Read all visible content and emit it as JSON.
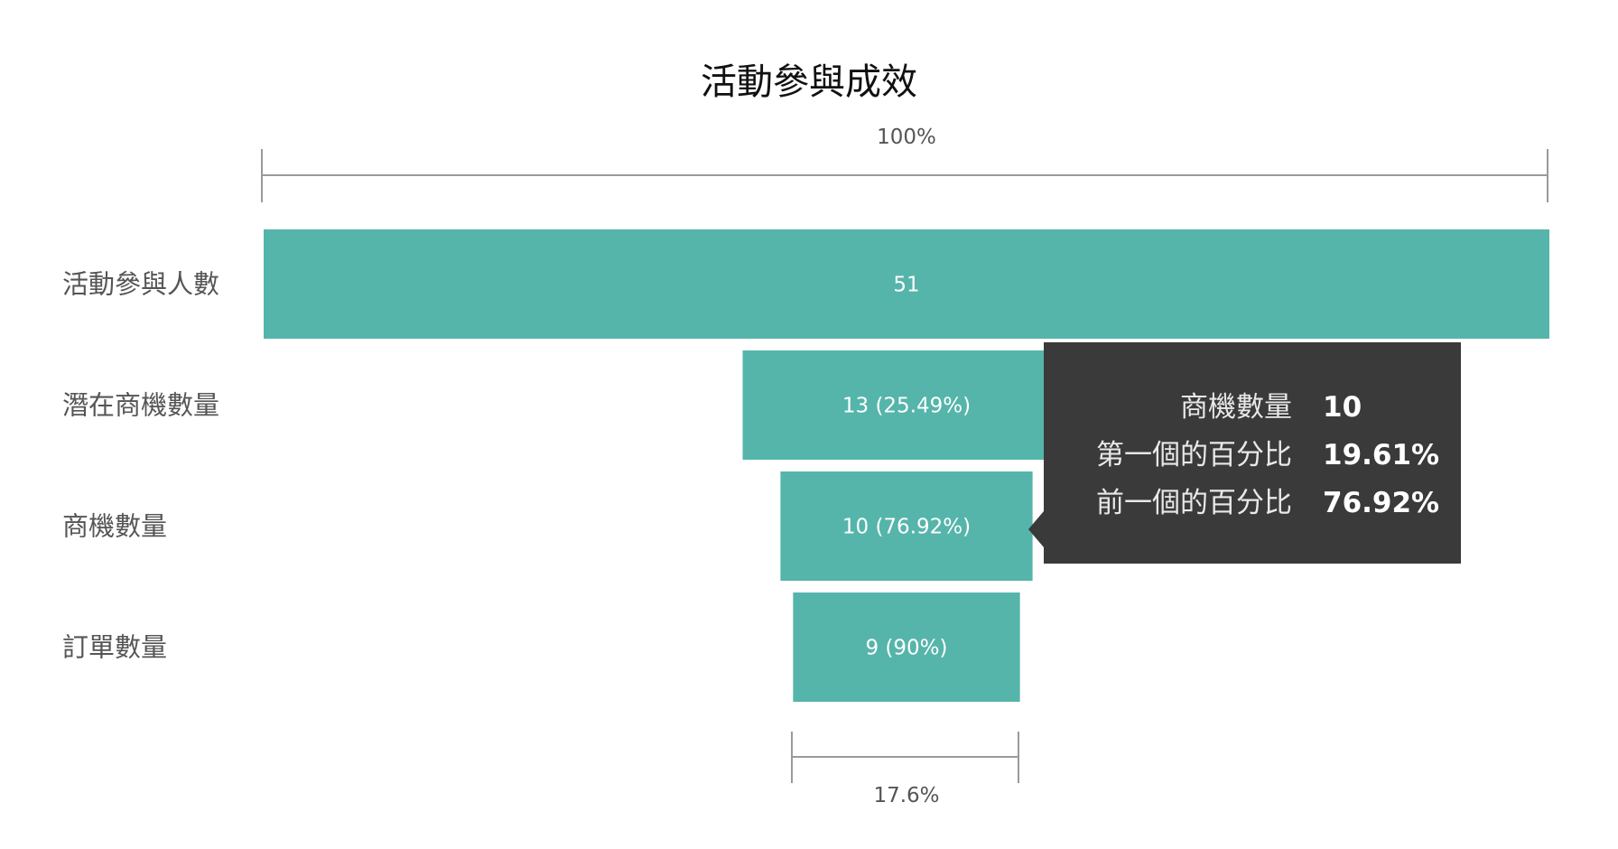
{
  "chart_data": {
    "type": "funnel",
    "title": "活動參與成效",
    "categories": [
      "活動參與人數",
      "潛在商機數量",
      "商機數量",
      "訂單數量"
    ],
    "values": [
      51,
      13,
      10,
      9
    ],
    "bar_labels": [
      "51",
      "13 (25.49%)",
      "10 (76.92%)",
      "9 (90%)"
    ],
    "top_measure_label": "100%",
    "bottom_measure_label": "17.6%",
    "bar_color": "#55b5aa",
    "grid": false,
    "tooltip": {
      "rows": [
        {
          "label": "商機數量",
          "value": "10"
        },
        {
          "label": "第一個的百分比",
          "value": "19.61%"
        },
        {
          "label": "前一個的百分比",
          "value": "76.92%"
        }
      ],
      "background": "#3a3a3a"
    }
  }
}
